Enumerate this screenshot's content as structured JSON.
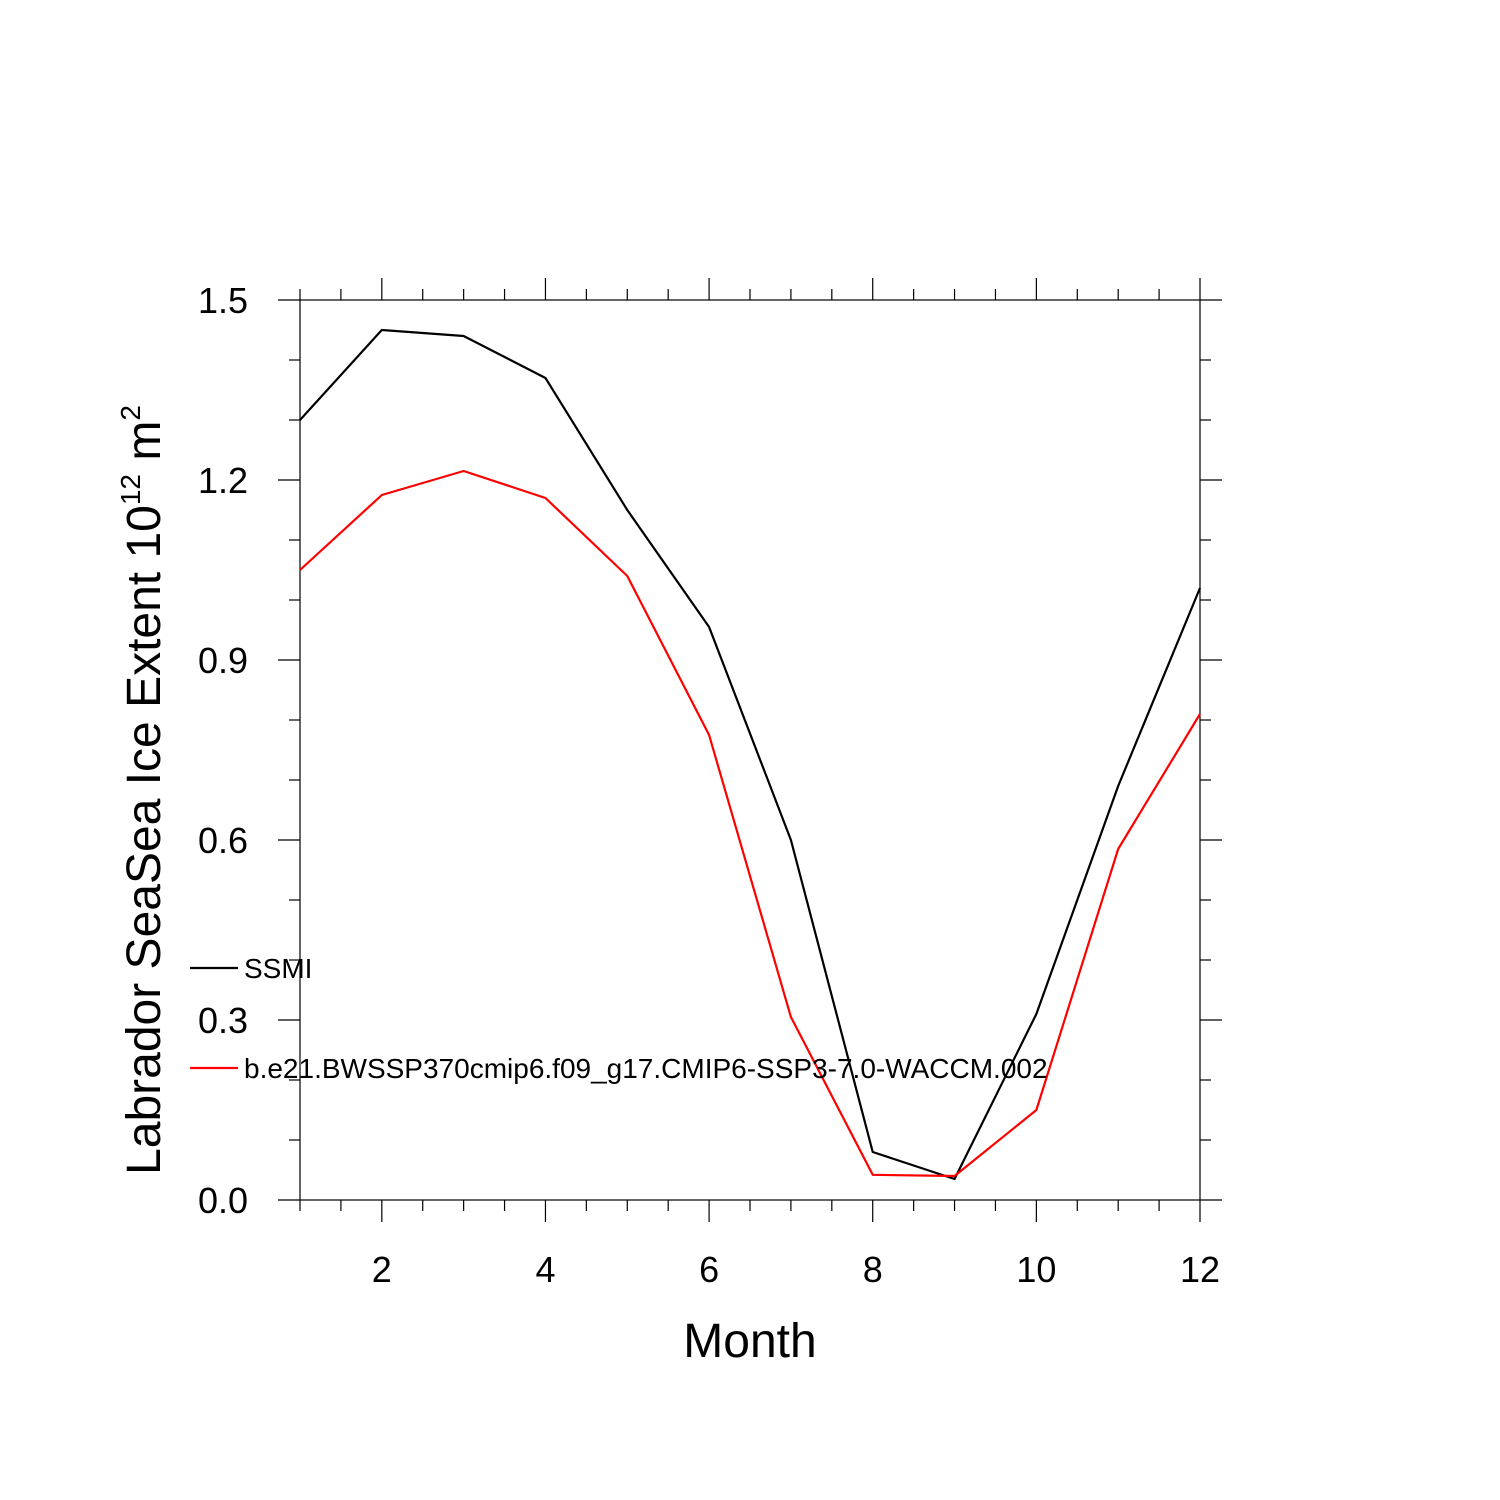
{
  "chart_data": {
    "type": "line",
    "title": "",
    "xlabel": "Month",
    "ylabel": {
      "prefix": "Labrador SeaSea Ice Extent 10",
      "superscript1": "12",
      "middle": " m",
      "superscript2": "2"
    },
    "xlim": [
      1,
      12
    ],
    "ylim": [
      0.0,
      1.5
    ],
    "xticks": [
      2,
      4,
      6,
      8,
      10,
      12
    ],
    "xtick_labels": [
      "2",
      "4",
      "6",
      "8",
      "10",
      "12"
    ],
    "yticks": [
      0.0,
      0.3,
      0.6,
      0.9,
      1.2,
      1.5
    ],
    "ytick_labels": [
      "0.0",
      "0.3",
      "0.6",
      "0.9",
      "1.2",
      "1.5"
    ],
    "grid": false,
    "legend_position": "inside-left",
    "x": [
      1,
      2,
      3,
      4,
      5,
      6,
      7,
      8,
      9,
      10,
      11,
      12
    ],
    "series": [
      {
        "name": "SSMI",
        "color": "#000000",
        "values": [
          1.3,
          1.45,
          1.44,
          1.37,
          1.15,
          0.955,
          0.6,
          0.08,
          0.035,
          0.31,
          0.69,
          1.02
        ]
      },
      {
        "name": "b.e21.BWSSP370cmip6.f09_g17.CMIP6-SSP3-7.0-WACCM.002",
        "color": "#ff0000",
        "values": [
          1.05,
          1.175,
          1.215,
          1.17,
          1.04,
          0.775,
          0.305,
          0.042,
          0.04,
          0.15,
          0.585,
          0.81
        ]
      }
    ]
  }
}
